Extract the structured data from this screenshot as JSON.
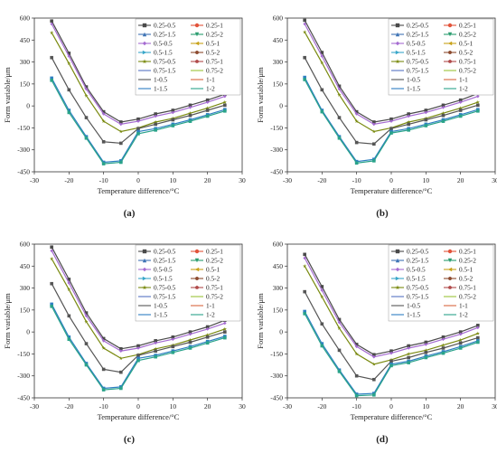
{
  "figure": {
    "axis_color": "#333333",
    "legend_entries": [
      {
        "label": "0.25-0.5",
        "color": "#4a4a4a",
        "marker": "square"
      },
      {
        "label": "0.25-1",
        "color": "#e2543b",
        "marker": "circle"
      },
      {
        "label": "0.25-1.5",
        "color": "#3f74b5",
        "marker": "triangle"
      },
      {
        "label": "0.25-2",
        "color": "#2a9d6f",
        "marker": "triangle-down"
      },
      {
        "label": "0.5-0.5",
        "color": "#a56bd1",
        "marker": "diamond"
      },
      {
        "label": "0.5-1",
        "color": "#c8a21a",
        "marker": "triangle-left"
      },
      {
        "label": "0.5-1.5",
        "color": "#39a7c9",
        "marker": "triangle-right"
      },
      {
        "label": "0.5-2",
        "color": "#8c4a2e",
        "marker": "hexagon"
      },
      {
        "label": "0.75-0.5",
        "color": "#7a8a10",
        "marker": "star"
      },
      {
        "label": "0.75-1",
        "color": "#b04a4a",
        "marker": "pentagon"
      },
      {
        "label": "0.75-1.5",
        "color": "#5572c2",
        "marker": "none"
      },
      {
        "label": "0.75-2",
        "color": "#9ac43a",
        "marker": "none"
      },
      {
        "label": "1-0.5",
        "color": "#555555",
        "marker": "none"
      },
      {
        "label": "1-1",
        "color": "#d9663f",
        "marker": "none"
      },
      {
        "label": "1-1.5",
        "color": "#2e7fc2",
        "marker": "none"
      },
      {
        "label": "1-2",
        "color": "#2aa38a",
        "marker": "none"
      }
    ]
  },
  "chart_data": [
    {
      "type": "line",
      "panel_label": "(a)",
      "xlabel": "Temperature difference/°C",
      "ylabel": "Form variable/μm",
      "xlim": [
        -30,
        30
      ],
      "ylim": [
        -450,
        600
      ],
      "xticks": [
        -30,
        -20,
        -10,
        0,
        10,
        20,
        30
      ],
      "yticks": [
        -450,
        -300,
        -150,
        0,
        150,
        300,
        450,
        600
      ],
      "x": [
        -25,
        -20,
        -15,
        -10,
        -5,
        0,
        5,
        10,
        15,
        20,
        25
      ],
      "series": [
        {
          "name": "0.25-0.5",
          "values": [
            580,
            360,
            130,
            -40,
            -110,
            -90,
            -55,
            -30,
            5,
            40,
            80
          ]
        },
        {
          "name": "0.5-0.5",
          "values": [
            560,
            340,
            115,
            -55,
            -125,
            -105,
            -70,
            -45,
            -10,
            25,
            65
          ]
        },
        {
          "name": "0.75-0.5",
          "values": [
            500,
            290,
            70,
            -105,
            -175,
            -150,
            -110,
            -85,
            -50,
            -15,
            25
          ]
        },
        {
          "name": "1-0.5",
          "values": [
            330,
            110,
            -80,
            -245,
            -255,
            -155,
            -125,
            -95,
            -65,
            -30,
            5
          ]
        },
        {
          "name": "1-1.5",
          "values": [
            190,
            -30,
            -210,
            -385,
            -375,
            -175,
            -155,
            -125,
            -95,
            -60,
            -25
          ]
        },
        {
          "name": "1-2",
          "values": [
            175,
            -45,
            -220,
            -395,
            -385,
            -190,
            -165,
            -135,
            -105,
            -70,
            -35
          ]
        }
      ]
    },
    {
      "type": "line",
      "panel_label": "(b)",
      "xlabel": "Temperature difference/°C",
      "ylabel": "Form variable/μm",
      "xlim": [
        -30,
        30
      ],
      "ylim": [
        -450,
        600
      ],
      "xticks": [
        -30,
        -20,
        -10,
        0,
        10,
        20,
        30
      ],
      "yticks": [
        -450,
        -300,
        -150,
        0,
        150,
        300,
        450,
        600
      ],
      "x": [
        -25,
        -20,
        -15,
        -10,
        -5,
        0,
        5,
        10,
        15,
        20,
        25
      ],
      "series": [
        {
          "name": "0.25-0.5",
          "values": [
            585,
            365,
            135,
            -40,
            -110,
            -90,
            -55,
            -30,
            5,
            40,
            85
          ]
        },
        {
          "name": "0.5-0.5",
          "values": [
            560,
            340,
            115,
            -55,
            -125,
            -105,
            -70,
            -45,
            -10,
            25,
            65
          ]
        },
        {
          "name": "0.75-0.5",
          "values": [
            505,
            295,
            75,
            -105,
            -175,
            -150,
            -110,
            -85,
            -50,
            -15,
            25
          ]
        },
        {
          "name": "1-0.5",
          "values": [
            330,
            110,
            -80,
            -250,
            -260,
            -155,
            -125,
            -95,
            -65,
            -30,
            5
          ]
        },
        {
          "name": "1-1.5",
          "values": [
            195,
            -30,
            -210,
            -380,
            -365,
            -175,
            -155,
            -125,
            -95,
            -60,
            -25
          ]
        },
        {
          "name": "1-2",
          "values": [
            180,
            -40,
            -220,
            -390,
            -375,
            -185,
            -165,
            -135,
            -105,
            -70,
            -35
          ]
        }
      ]
    },
    {
      "type": "line",
      "panel_label": "(c)",
      "xlabel": "Temperature difference/°C",
      "ylabel": "Form variable/μm",
      "xlim": [
        -30,
        30
      ],
      "ylim": [
        -450,
        600
      ],
      "xticks": [
        -30,
        -20,
        -10,
        0,
        10,
        20,
        30
      ],
      "yticks": [
        -450,
        -300,
        -150,
        0,
        150,
        300,
        450,
        600
      ],
      "x": [
        -25,
        -20,
        -15,
        -10,
        -5,
        0,
        5,
        10,
        15,
        20,
        25
      ],
      "series": [
        {
          "name": "0.25-0.5",
          "values": [
            580,
            360,
            130,
            -45,
            -115,
            -95,
            -60,
            -35,
            0,
            35,
            80
          ]
        },
        {
          "name": "0.5-0.5",
          "values": [
            555,
            335,
            110,
            -60,
            -130,
            -110,
            -75,
            -50,
            -15,
            20,
            60
          ]
        },
        {
          "name": "0.75-0.5",
          "values": [
            500,
            290,
            70,
            -110,
            -180,
            -155,
            -115,
            -90,
            -55,
            -20,
            20
          ]
        },
        {
          "name": "1-0.5",
          "values": [
            330,
            110,
            -80,
            -255,
            -275,
            -160,
            -130,
            -100,
            -70,
            -35,
            0
          ]
        },
        {
          "name": "1-1.5",
          "values": [
            190,
            -35,
            -215,
            -385,
            -375,
            -180,
            -160,
            -130,
            -100,
            -65,
            -30
          ]
        },
        {
          "name": "1-2",
          "values": [
            175,
            -50,
            -225,
            -395,
            -385,
            -195,
            -170,
            -140,
            -110,
            -75,
            -40
          ]
        }
      ]
    },
    {
      "type": "line",
      "panel_label": "(d)",
      "xlabel": "Temperature difference/°C",
      "ylabel": "Form variable/μm",
      "xlim": [
        -30,
        30
      ],
      "ylim": [
        -450,
        600
      ],
      "xticks": [
        -30,
        -20,
        -10,
        0,
        10,
        20,
        30
      ],
      "yticks": [
        -450,
        -300,
        -150,
        0,
        150,
        300,
        450,
        600
      ],
      "x": [
        -25,
        -20,
        -15,
        -10,
        -5,
        0,
        5,
        10,
        15,
        20,
        25
      ],
      "series": [
        {
          "name": "0.25-0.5",
          "values": [
            530,
            310,
            85,
            -85,
            -155,
            -130,
            -95,
            -70,
            -35,
            0,
            45
          ]
        },
        {
          "name": "0.5-0.5",
          "values": [
            505,
            285,
            65,
            -100,
            -170,
            -145,
            -110,
            -85,
            -50,
            -15,
            30
          ]
        },
        {
          "name": "0.75-0.5",
          "values": [
            450,
            240,
            25,
            -150,
            -220,
            -190,
            -150,
            -125,
            -90,
            -55,
            -10
          ]
        },
        {
          "name": "1-0.5",
          "values": [
            275,
            55,
            -125,
            -300,
            -325,
            -200,
            -175,
            -140,
            -110,
            -75,
            -40
          ]
        },
        {
          "name": "1-1.5",
          "values": [
            140,
            -80,
            -260,
            -425,
            -420,
            -220,
            -200,
            -165,
            -135,
            -100,
            -60
          ]
        },
        {
          "name": "1-2",
          "values": [
            125,
            -95,
            -270,
            -435,
            -430,
            -230,
            -210,
            -175,
            -145,
            -110,
            -70
          ]
        }
      ]
    }
  ]
}
